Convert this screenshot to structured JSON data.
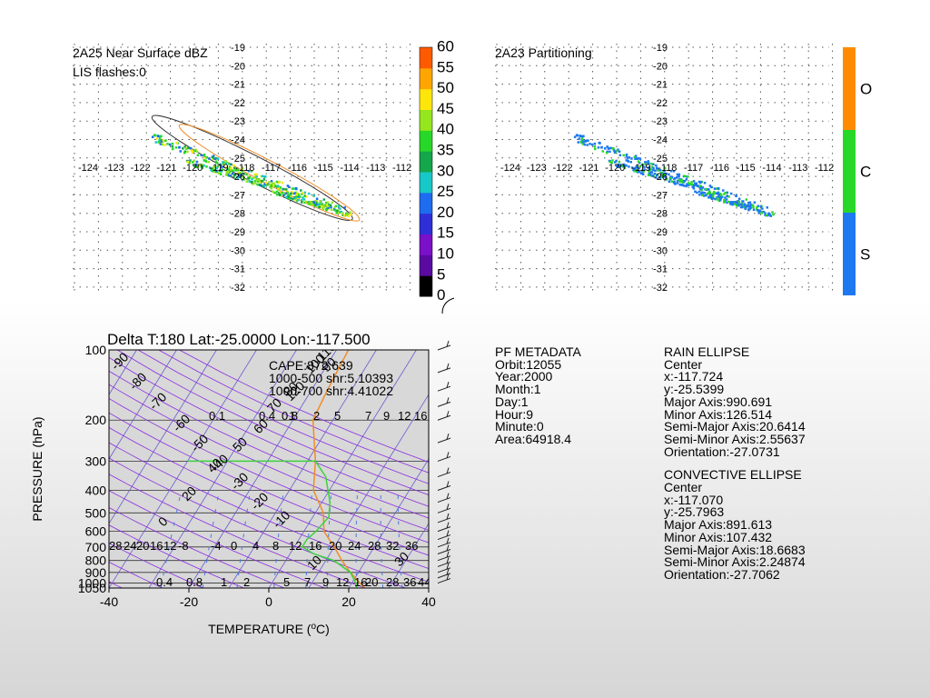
{
  "colors": {
    "dbz": [
      "#000000",
      "#3a0a6e",
      "#5a0aa0",
      "#7a10c8",
      "#2f2fd8",
      "#1e6cf0",
      "#18c8c8",
      "#14a64a",
      "#28d828",
      "#96e61e",
      "#ffe60a",
      "#ffa500",
      "#ff5a00"
    ],
    "partition": {
      "S": "#1e78f0",
      "C": "#28d828",
      "O": "#ff8c00"
    },
    "temperature_line": "#f08c28",
    "dewpoint_line": "#3cd23c",
    "isotherm": "#6a5acd",
    "dry_adiabat": "#8a2be2",
    "mixing_ratio": "#4a7ae0"
  },
  "panel1": {
    "title": "2A25 Near Surface dBZ",
    "subtitle": "LIS flashes:0",
    "lon_ticks": [
      "-124",
      "-123",
      "-122",
      "-121",
      "-120",
      "-119",
      "-118",
      "-117",
      "-116",
      "-115",
      "-114",
      "-113",
      "-112"
    ],
    "lat_ticks": [
      "-19",
      "-20",
      "-21",
      "-22",
      "-23",
      "-24",
      "-25",
      "-26",
      "-27",
      "-28",
      "-29",
      "-30",
      "-31",
      "-32"
    ],
    "colorbar_labels": [
      "60",
      "55",
      "50",
      "45",
      "40",
      "35",
      "30",
      "25",
      "20",
      "15",
      "10",
      "5",
      "0"
    ]
  },
  "panel2": {
    "title": "2A23 Partitioning",
    "lon_ticks": [
      "-124",
      "-123",
      "-122",
      "-121",
      "-120",
      "-119",
      "-118",
      "-117",
      "-116",
      "-115",
      "-114",
      "-113",
      "-112"
    ],
    "lat_ticks": [
      "-19",
      "-20",
      "-21",
      "-22",
      "-23",
      "-24",
      "-25",
      "-26",
      "-27",
      "-28",
      "-29",
      "-30",
      "-31",
      "-32"
    ],
    "categories": [
      "O",
      "C",
      "S"
    ]
  },
  "skewt": {
    "title": "Delta T:180 Lat:-25.0000 Lon:-117.500",
    "cape": "CAPE:872.639",
    "shear1": "1000-500 shr:5.10393",
    "shear2": "1000-700 shr:4.41022",
    "xlabel": "TEMPERATURE (°C)",
    "ylabel": "PRESSURE  (hPa)",
    "x_ticks": [
      "-40",
      "-20",
      "0",
      "20",
      "40"
    ],
    "p_ticks": [
      "100",
      "200",
      "300",
      "400",
      "500",
      "600",
      "700",
      "800",
      "900",
      "1000",
      "1050"
    ],
    "mixing_top": [
      "0.1",
      "0.4",
      "0.8",
      "1",
      "2",
      "5",
      "7",
      "9",
      "12",
      "16"
    ],
    "mixing_bottom": [
      "0.4",
      "0.8",
      "1",
      "2",
      "5",
      "7",
      "9",
      "12",
      "16",
      "20",
      "28",
      "36",
      "44"
    ],
    "row700": [
      "28",
      "24",
      "20",
      "16",
      "12",
      "-8",
      "-4",
      "0",
      "4",
      "8",
      "12",
      "16",
      "20",
      "24",
      "28",
      "32",
      "36"
    ],
    "adiabat_labels": [
      "-90",
      "-80",
      "-70",
      "-60",
      "-50",
      "-40",
      "-30",
      "-20",
      "-10",
      "0",
      "10",
      "20",
      "30",
      "40",
      "50",
      "60",
      "70",
      "80",
      "90",
      "100",
      "110",
      "120"
    ]
  },
  "metadata": {
    "header": "PF METADATA",
    "lines": [
      "Orbit:12055",
      "Year:2000",
      "Month:1",
      "Day:1",
      "Hour:9",
      "Minute:0",
      "Area:64918.4"
    ]
  },
  "rain_ellipse": {
    "header": "RAIN ELLIPSE",
    "lines": [
      "Center",
      "x:-117.724",
      "y:-25.5399",
      "Major Axis:990.691",
      "Minor Axis:126.514",
      "Semi-Major Axis:20.6414",
      "Semi-Minor Axis:2.55637",
      "Orientation:-27.0731"
    ]
  },
  "convective_ellipse": {
    "header": "CONVECTIVE ELLIPSE",
    "lines": [
      "Center",
      "x:-117.070",
      "y:-25.7963",
      "Major Axis:891.613",
      "Minor Axis:107.432",
      "Semi-Major Axis:18.6683",
      "Semi-Minor Axis:2.24874",
      "Orientation:-27.7062"
    ]
  },
  "chart_data": [
    {
      "type": "heatmap",
      "title": "2A25 Near Surface dBZ",
      "subtitle": "LIS flashes:0",
      "x": {
        "label": "",
        "range": [
          -124,
          -112
        ]
      },
      "y": {
        "label": "",
        "range": [
          -32,
          -19
        ]
      },
      "colorbar": {
        "values": [
          0,
          5,
          10,
          15,
          20,
          25,
          30,
          35,
          40,
          45,
          50,
          55,
          60
        ]
      },
      "ellipses": [
        {
          "center": [
            -117.724,
            -25.5399
          ],
          "semi_major": 20.6414,
          "semi_minor": 2.55637,
          "orientation": -27.0731
        },
        {
          "center": [
            -117.07,
            -25.7963
          ],
          "semi_major": 18.6683,
          "semi_minor": 2.24874,
          "orientation": -27.7062
        }
      ],
      "grid": true
    },
    {
      "type": "heatmap",
      "title": "2A23 Partitioning",
      "x": {
        "label": "",
        "range": [
          -124,
          -112
        ]
      },
      "y": {
        "label": "",
        "range": [
          -32,
          -19
        ]
      },
      "colorbar": {
        "categories": [
          "S",
          "C",
          "O"
        ]
      },
      "grid": true
    },
    {
      "type": "line",
      "title": "Delta T:180 Lat:-25.0000 Lon:-117.500",
      "xlabel": "TEMPERATURE (°C)",
      "ylabel": "PRESSURE  (hPa)",
      "xlim": [
        -40,
        40
      ],
      "ylim": [
        1050,
        100
      ],
      "y_scale": "log",
      "series": [
        {
          "points": [
            [
              -17,
              100
            ],
            [
              -16,
              150
            ],
            [
              -15,
              200
            ],
            [
              -8,
              300
            ],
            [
              -4,
              400
            ],
            [
              2,
              500
            ],
            [
              5,
              600
            ],
            [
              10,
              700
            ],
            [
              14,
              800
            ],
            [
              18,
              900
            ],
            [
              22,
              1000
            ],
            [
              24,
              1050
            ]
          ]
        },
        {
          "points": [
            [
              -40,
              300
            ],
            [
              -8,
              300
            ],
            [
              -3,
              350
            ],
            [
              2,
              450
            ],
            [
              4,
              520
            ],
            [
              3,
              600
            ],
            [
              2,
              650
            ],
            [
              2,
              700
            ],
            [
              6,
              750
            ],
            [
              12,
              800
            ],
            [
              18,
              900
            ],
            [
              21,
              1000
            ],
            [
              22,
              1050
            ]
          ]
        }
      ],
      "grid": true
    }
  ]
}
